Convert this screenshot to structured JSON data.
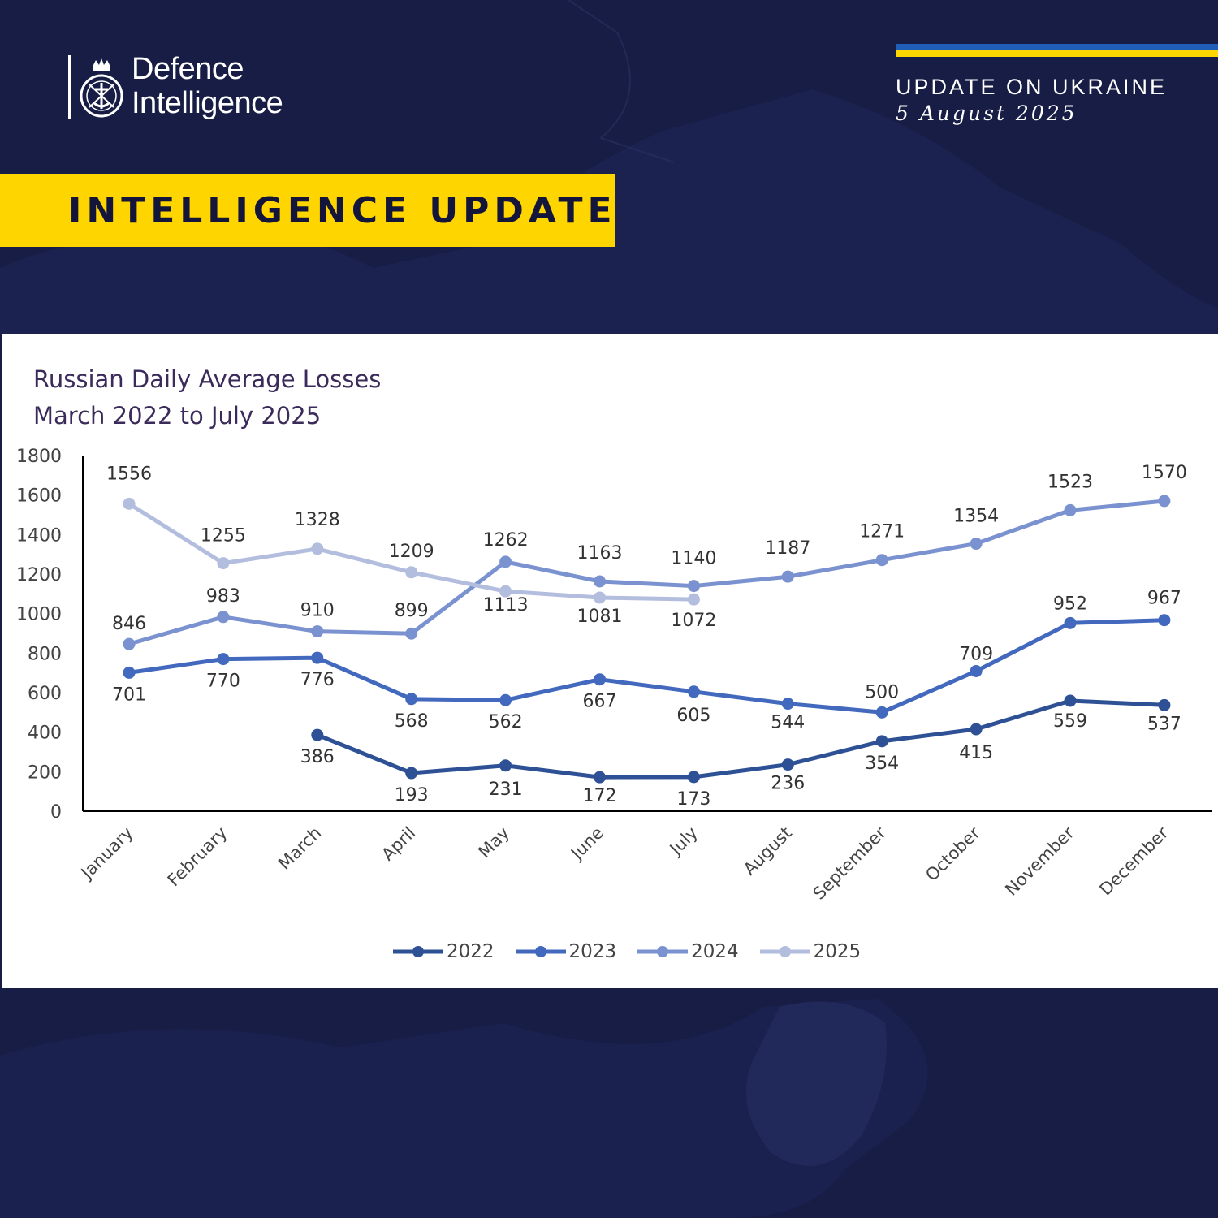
{
  "header": {
    "logo_line1": "Defence",
    "logo_line2": "Intelligence",
    "update_heading": "UPDATE ON UKRAINE",
    "update_date": "5 August 2025",
    "banner": "INTELLIGENCE UPDATE"
  },
  "colors": {
    "background": "#171d45",
    "banner_yellow": "#ffd500",
    "flag_blue": "#1f5fb7",
    "series_2022": "#2e5196",
    "series_2023": "#4269bd",
    "series_2024": "#7a92cf",
    "series_2025": "#b3bedf"
  },
  "icons": {
    "logo": "defence-intelligence-crest-icon"
  },
  "chart_data": {
    "type": "line",
    "title_line1": "Russian Daily Average Losses",
    "title_line2": "March 2022 to July 2025",
    "xlabel": "",
    "ylabel": "",
    "ylim": [
      0,
      1800
    ],
    "yticks": [
      "1800",
      "1600",
      "1400",
      "1200",
      "1000",
      "800",
      "600",
      "400",
      "200",
      "0"
    ],
    "grid": false,
    "legend_position": "bottom",
    "categories": [
      "January",
      "February",
      "March",
      "April",
      "May",
      "June",
      "July",
      "August",
      "September",
      "October",
      "November",
      "December"
    ],
    "series": [
      {
        "name": "2022",
        "color": "#2e5196",
        "values": [
          null,
          null,
          386,
          193,
          231,
          172,
          173,
          236,
          354,
          415,
          559,
          537
        ]
      },
      {
        "name": "2023",
        "color": "#4269bd",
        "values": [
          701,
          770,
          776,
          568,
          562,
          667,
          605,
          544,
          500,
          709,
          952,
          967
        ]
      },
      {
        "name": "2024",
        "color": "#7a92cf",
        "values": [
          846,
          983,
          910,
          899,
          1262,
          1163,
          1140,
          1187,
          1271,
          1354,
          1523,
          1570
        ]
      },
      {
        "name": "2025",
        "color": "#b3bedf",
        "values": [
          1556,
          1255,
          1328,
          1209,
          1113,
          1081,
          1072,
          null,
          null,
          null,
          null,
          null
        ]
      }
    ]
  }
}
